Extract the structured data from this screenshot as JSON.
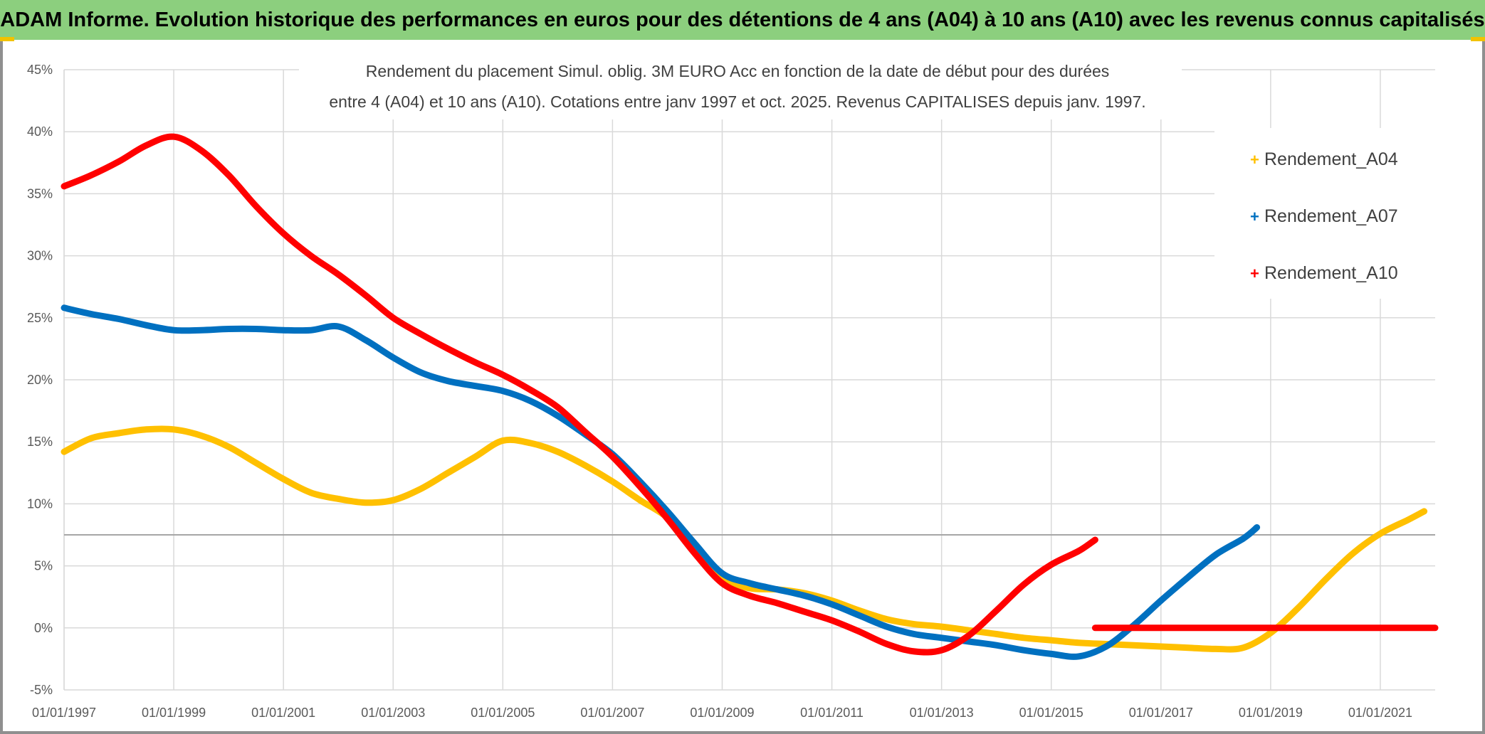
{
  "header": {
    "title": "ADAM Informe. Evolution historique des performances en euros pour des détentions de 4 ans (A04) à 10 ans (A10) avec les revenus connus capitalisés"
  },
  "colors": {
    "banner": "#8ccf7e",
    "a04": "#ffc000",
    "a07": "#0070c0",
    "a10": "#ff0000",
    "grid": "#d9d9d9"
  },
  "chart_data": {
    "type": "line",
    "title_line1": "Rendement du placement Simul. oblig. 3M EURO Acc en fonction de la date de début pour des durées",
    "title_line2": "entre 4 (A04) et 10 ans (A10). Cotations entre janv 1997 et oct. 2025. Revenus CAPITALISES depuis janv. 1997.",
    "xlabel": "",
    "ylabel": "",
    "x_tick_labels": [
      "01/01/1997",
      "01/01/1999",
      "01/01/2001",
      "01/01/2003",
      "01/01/2005",
      "01/01/2007",
      "01/01/2009",
      "01/01/2011",
      "01/01/2013",
      "01/01/2015",
      "01/01/2017",
      "01/01/2019",
      "01/01/2021"
    ],
    "y_tick_labels": [
      "45%",
      "40%",
      "35%",
      "30%",
      "25%",
      "20%",
      "15%",
      "10%",
      "5%",
      "0%",
      "-5%"
    ],
    "ylim": [
      -5,
      45
    ],
    "xlim": [
      1997.0,
      2022.0
    ],
    "grid": true,
    "legend_position": "top-right",
    "reference_line_y": 7.5,
    "series": [
      {
        "name": "Rendement_A04",
        "color": "#ffc000",
        "points": [
          [
            1997.0,
            14.2
          ],
          [
            1997.5,
            15.3
          ],
          [
            1998.0,
            15.7
          ],
          [
            1998.5,
            16.0
          ],
          [
            1999.0,
            16.0
          ],
          [
            1999.5,
            15.5
          ],
          [
            2000.0,
            14.6
          ],
          [
            2000.5,
            13.3
          ],
          [
            2001.0,
            12.0
          ],
          [
            2001.5,
            10.9
          ],
          [
            2002.0,
            10.4
          ],
          [
            2002.5,
            10.1
          ],
          [
            2003.0,
            10.3
          ],
          [
            2003.5,
            11.2
          ],
          [
            2004.0,
            12.5
          ],
          [
            2004.5,
            13.8
          ],
          [
            2005.0,
            15.1
          ],
          [
            2005.5,
            14.9
          ],
          [
            2006.0,
            14.2
          ],
          [
            2006.5,
            13.1
          ],
          [
            2007.0,
            11.8
          ],
          [
            2007.5,
            10.3
          ],
          [
            2008.0,
            8.9
          ],
          [
            2008.5,
            6.6
          ],
          [
            2009.0,
            4.0
          ],
          [
            2009.5,
            3.2
          ],
          [
            2010.0,
            3.1
          ],
          [
            2010.5,
            2.8
          ],
          [
            2011.0,
            2.2
          ],
          [
            2011.5,
            1.4
          ],
          [
            2012.0,
            0.7
          ],
          [
            2012.5,
            0.3
          ],
          [
            2013.0,
            0.1
          ],
          [
            2013.5,
            -0.2
          ],
          [
            2014.0,
            -0.5
          ],
          [
            2014.5,
            -0.8
          ],
          [
            2015.0,
            -1.0
          ],
          [
            2015.5,
            -1.2
          ],
          [
            2016.0,
            -1.3
          ],
          [
            2016.5,
            -1.4
          ],
          [
            2017.0,
            -1.5
          ],
          [
            2017.5,
            -1.6
          ],
          [
            2018.0,
            -1.7
          ],
          [
            2018.5,
            -1.6
          ],
          [
            2019.0,
            -0.4
          ],
          [
            2019.5,
            1.6
          ],
          [
            2020.0,
            3.9
          ],
          [
            2020.5,
            6.0
          ],
          [
            2021.0,
            7.6
          ],
          [
            2021.5,
            8.7
          ],
          [
            2021.8,
            9.4
          ]
        ]
      },
      {
        "name": "Rendement_A07",
        "color": "#0070c0",
        "points": [
          [
            1997.0,
            25.8
          ],
          [
            1997.5,
            25.3
          ],
          [
            1998.0,
            24.9
          ],
          [
            1998.5,
            24.4
          ],
          [
            1999.0,
            24.0
          ],
          [
            1999.5,
            24.0
          ],
          [
            2000.0,
            24.1
          ],
          [
            2000.5,
            24.1
          ],
          [
            2001.0,
            24.0
          ],
          [
            2001.5,
            24.0
          ],
          [
            2002.0,
            24.3
          ],
          [
            2002.5,
            23.2
          ],
          [
            2003.0,
            21.8
          ],
          [
            2003.5,
            20.6
          ],
          [
            2004.0,
            19.9
          ],
          [
            2004.5,
            19.5
          ],
          [
            2005.0,
            19.1
          ],
          [
            2005.5,
            18.3
          ],
          [
            2006.0,
            17.1
          ],
          [
            2006.5,
            15.6
          ],
          [
            2007.0,
            14.0
          ],
          [
            2007.5,
            11.8
          ],
          [
            2008.0,
            9.4
          ],
          [
            2008.5,
            6.8
          ],
          [
            2009.0,
            4.4
          ],
          [
            2009.5,
            3.6
          ],
          [
            2010.0,
            3.1
          ],
          [
            2010.5,
            2.6
          ],
          [
            2011.0,
            1.9
          ],
          [
            2011.5,
            1.0
          ],
          [
            2012.0,
            0.1
          ],
          [
            2012.5,
            -0.5
          ],
          [
            2013.0,
            -0.8
          ],
          [
            2013.5,
            -1.1
          ],
          [
            2014.0,
            -1.4
          ],
          [
            2014.5,
            -1.8
          ],
          [
            2015.0,
            -2.1
          ],
          [
            2015.5,
            -2.3
          ],
          [
            2016.0,
            -1.5
          ],
          [
            2016.5,
            0.2
          ],
          [
            2017.0,
            2.2
          ],
          [
            2017.5,
            4.1
          ],
          [
            2018.0,
            5.9
          ],
          [
            2018.5,
            7.2
          ],
          [
            2018.75,
            8.1
          ]
        ]
      },
      {
        "name": "Rendement_A10",
        "color": "#ff0000",
        "points": [
          [
            1997.0,
            35.6
          ],
          [
            1997.5,
            36.5
          ],
          [
            1998.0,
            37.6
          ],
          [
            1998.5,
            38.9
          ],
          [
            1999.0,
            39.6
          ],
          [
            1999.5,
            38.5
          ],
          [
            2000.0,
            36.5
          ],
          [
            2000.5,
            34.0
          ],
          [
            2001.0,
            31.8
          ],
          [
            2001.5,
            30.0
          ],
          [
            2002.0,
            28.5
          ],
          [
            2002.5,
            26.8
          ],
          [
            2003.0,
            25.0
          ],
          [
            2003.5,
            23.7
          ],
          [
            2004.0,
            22.5
          ],
          [
            2004.5,
            21.4
          ],
          [
            2005.0,
            20.4
          ],
          [
            2005.5,
            19.2
          ],
          [
            2006.0,
            17.8
          ],
          [
            2006.5,
            15.8
          ],
          [
            2007.0,
            13.8
          ],
          [
            2007.5,
            11.4
          ],
          [
            2008.0,
            8.8
          ],
          [
            2008.5,
            6.0
          ],
          [
            2009.0,
            3.6
          ],
          [
            2009.5,
            2.6
          ],
          [
            2010.0,
            2.0
          ],
          [
            2010.5,
            1.3
          ],
          [
            2011.0,
            0.6
          ],
          [
            2011.5,
            -0.3
          ],
          [
            2012.0,
            -1.3
          ],
          [
            2012.5,
            -1.9
          ],
          [
            2013.0,
            -1.8
          ],
          [
            2013.5,
            -0.6
          ],
          [
            2014.0,
            1.4
          ],
          [
            2014.5,
            3.5
          ],
          [
            2015.0,
            5.1
          ],
          [
            2015.5,
            6.2
          ],
          [
            2015.8,
            7.1
          ]
        ]
      },
      {
        "name": "",
        "color": "#ff0000",
        "points": [
          [
            2015.8,
            0.0
          ],
          [
            2022.0,
            0.0
          ]
        ]
      }
    ]
  }
}
